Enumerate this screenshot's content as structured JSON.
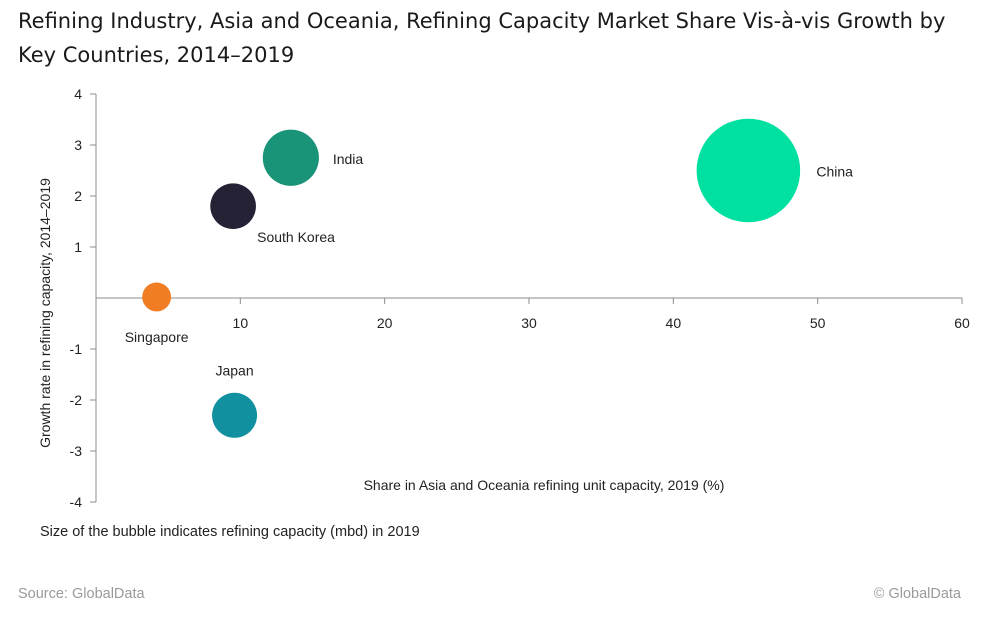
{
  "title": "Refining Industry, Asia and Oceania, Refining Capacity Market Share Vis-à-vis Growth by Key Countries, 2014–2019",
  "footnote": "Size of the bubble indicates refining capacity (mbd) in 2019",
  "source": "Source: GlobalData",
  "copyright": "© GlobalData",
  "chart_data": {
    "type": "scatter",
    "subtype": "bubble",
    "xlabel": "Share in Asia and Oceania refining unit capacity, 2019 (%)",
    "ylabel": "Growth rate in refining capacity, 2014–2019",
    "xlim": [
      0,
      60
    ],
    "ylim": [
      -4,
      4
    ],
    "x_ticks": [
      10,
      20,
      30,
      40,
      50,
      60
    ],
    "y_ticks": [
      4,
      3,
      2,
      1,
      -1,
      -2,
      -3,
      -4
    ],
    "grid": false,
    "legend": "none",
    "series": [
      {
        "name": "China",
        "x": 45.2,
        "y": 2.5,
        "size": 18.0,
        "color": "#00e0a0"
      },
      {
        "name": "India",
        "x": 13.5,
        "y": 2.75,
        "size": 5.3,
        "color": "#1a9478"
      },
      {
        "name": "South Korea",
        "x": 9.5,
        "y": 1.8,
        "size": 3.5,
        "color": "#262236"
      },
      {
        "name": "Singapore",
        "x": 4.2,
        "y": 0.02,
        "size": 1.4,
        "color": "#f07d23"
      },
      {
        "name": "Japan",
        "x": 9.6,
        "y": -2.3,
        "size": 3.4,
        "color": "#11909f"
      }
    ]
  }
}
